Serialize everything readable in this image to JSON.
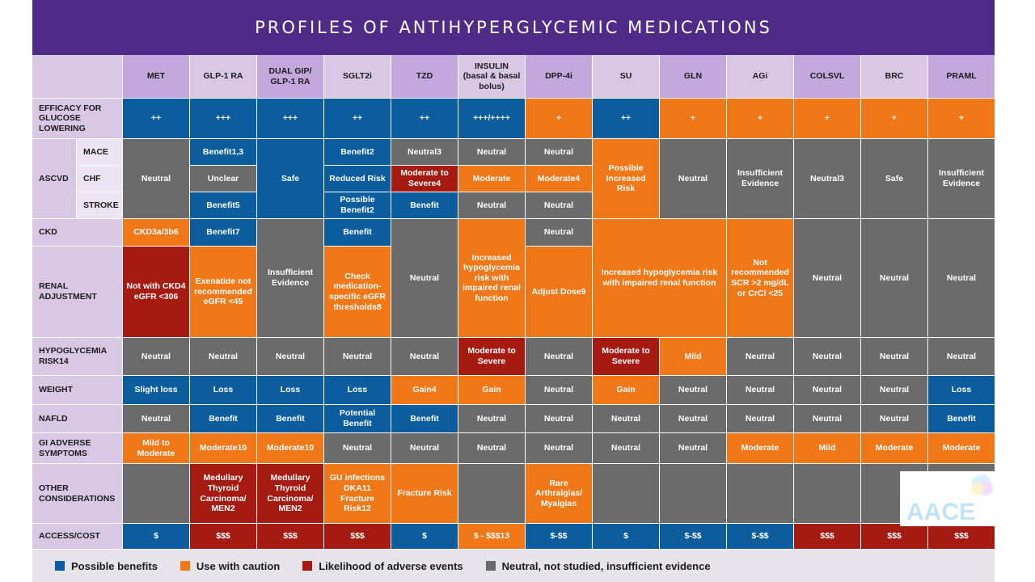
{
  "title": "PROFILES OF ANTIHYPERGLYCEMIC MEDICATIONS",
  "colors": {
    "benefit": "#0b5d9e",
    "caution": "#f07818",
    "adverse": "#a51b12",
    "neutral": "#6b6b6b",
    "title_bg": "#4f2a87",
    "header_bg": "#d8c8e6"
  },
  "columns": [
    "MET",
    "GLP-1 RA",
    "DUAL GIP/ GLP-1 RA",
    "SGLT2i",
    "TZD",
    "INSULIN (basal & basal bolus)",
    "DPP-4i",
    "SU",
    "GLN",
    "AGi",
    "COLSVL",
    "BRC",
    "PRAML"
  ],
  "row_labels": {
    "efficacy": "EFFICACY FOR GLUCOSE LOWERING",
    "ascvd": "ASCVD",
    "mace": "MACE",
    "chf": "CHF",
    "stroke": "STROKE",
    "ckd": "CKD",
    "renal": "RENAL ADJUSTMENT",
    "hypo": "HYPOGLYCEMIA RISK14",
    "weight": "WEIGHT",
    "nafld": "NAFLD",
    "gi": "GI ADVERSE SYMPTOMS",
    "other": "OTHER CONSIDERATIONS",
    "cost": "ACCESS/COST"
  },
  "efficacy": [
    "++",
    "+++",
    "+++",
    "++",
    "++",
    "+++/++++",
    "+",
    "++",
    "+",
    "+",
    "+",
    "+",
    "+"
  ],
  "ascvd_cells": {
    "met": "Neutral",
    "glp_mace": "Benefit1,3",
    "glp_chf": "Unclear",
    "glp_stroke": "Benefit5",
    "dual": "Safe",
    "sglt_mace": "Benefit2",
    "sglt_chf": "Reduced Risk",
    "sglt_stroke": "Possible Benefit2",
    "tzd_mace": "Neutral3",
    "tzd_chf": "Moderate to Severe4",
    "tzd_stroke": "Benefit",
    "ins_mace": "Neutral",
    "ins_chf": "Moderate",
    "ins_stroke": "Neutral",
    "dpp_mace": "Neutral",
    "dpp_chf": "Moderate4",
    "dpp_stroke": "Neutral",
    "su": "Possible Increased Risk",
    "gln": "Neutral",
    "agi": "Insufficient Evidence",
    "colsvl": "Neutral3",
    "brc": "Safe",
    "praml": "Insufficient Evidence"
  },
  "ckd_cells": {
    "met_ckd": "CKD3a/3b6",
    "met_renal": "Not with CKD4 eGFR <306",
    "glp_ckd": "Benefit7",
    "glp_renal": "Exenatide not recommended eGFR <45",
    "dual": "Insufficient Evidence",
    "sglt_ckd": "Benefit",
    "sglt_renal": "Check medication-specific eGFR thresholds8",
    "tzd": "Neutral",
    "ins": "Increased hypoglycemia risk with impaired renal function",
    "dpp_ckd": "Neutral",
    "dpp_renal": "Adjust Dose9",
    "su_gln": "Increased hypoglycemia risk with impaired renal function",
    "agi": "Not recommended SCR >2 mg/dL or CrCl <25",
    "colsvl": "Neutral",
    "brc": "Neutral",
    "praml": "Neutral"
  },
  "hypo": [
    "Neutral",
    "Neutral",
    "Neutral",
    "Neutral",
    "Neutral",
    "Moderate to Severe",
    "Neutral",
    "Moderate to Severe",
    "Mild",
    "Neutral",
    "Neutral",
    "Neutral",
    "Neutral"
  ],
  "weight": [
    "Slight loss",
    "Loss",
    "Loss",
    "Loss",
    "Gain4",
    "Gain",
    "Neutral",
    "Gain",
    "Neutral",
    "Neutral",
    "Neutral",
    "Neutral",
    "Loss"
  ],
  "nafld": [
    "Neutral",
    "Benefit",
    "Benefit",
    "Potential Benefit",
    "Benefit",
    "Neutral",
    "Neutral",
    "Neutral",
    "Neutral",
    "Neutral",
    "Neutral",
    "Neutral",
    "Benefit"
  ],
  "gi": [
    "Mild to Moderate",
    "Moderate10",
    "Moderate10",
    "Neutral",
    "Neutral",
    "Neutral",
    "Neutral",
    "Neutral",
    "Neutral",
    "Moderate",
    "Mild",
    "Moderate",
    "Moderate"
  ],
  "other": [
    "",
    "Medullary Thyroid Carcinoma/ MEN2",
    "Medullary Thyroid Carcinoma/ MEN2",
    "GU infections DKA11 Fracture Risk12",
    "Fracture Risk",
    "",
    "Rare Arthralgias/ Myalgias",
    "",
    "",
    "",
    "",
    "",
    ""
  ],
  "cost": [
    "$",
    "$$$",
    "$$$",
    "$$$",
    "$",
    "$ - $$$13",
    "$-$$",
    "$",
    "$-$$",
    "$-$$",
    "$$$",
    "$$$",
    "$$$"
  ],
  "legend": [
    "Possible benefits",
    "Use with caution",
    "Likelihood of adverse events",
    "Neutral, not studied, insufficient evidence"
  ],
  "logo_text": "AACE",
  "logo_icon": "aace-logo-icon"
}
